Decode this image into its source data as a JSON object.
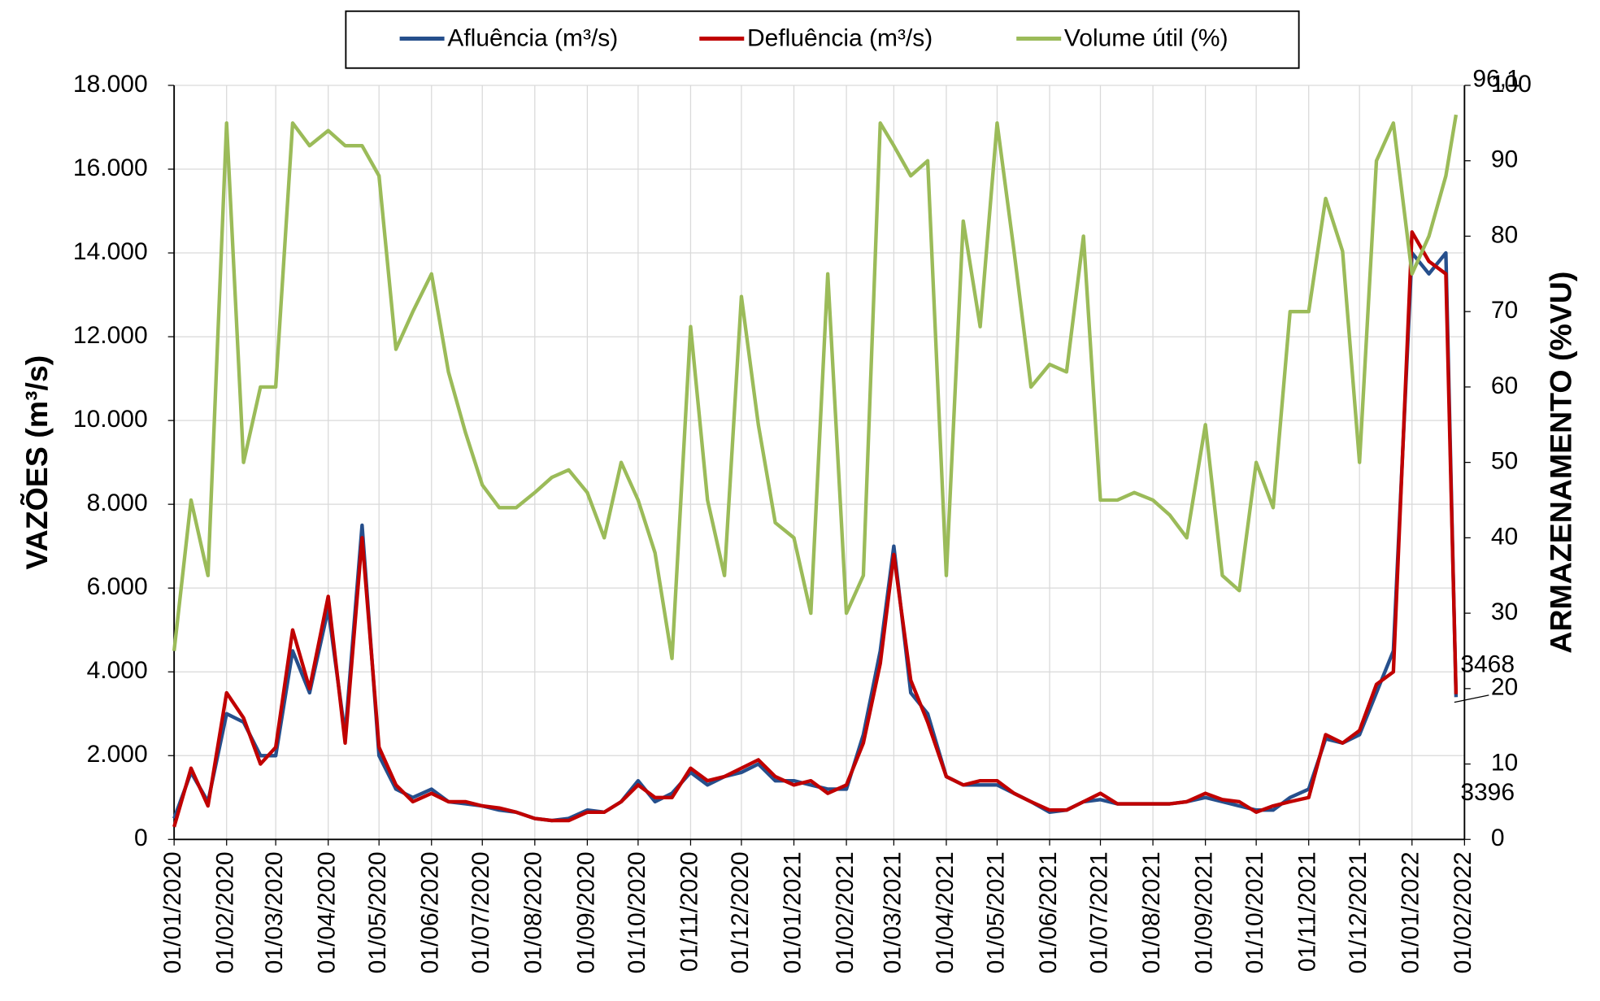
{
  "chart_data": {
    "type": "line",
    "y_label": "VAZÕES (m³/s)",
    "y2_label": "ARMAZENAMENTO (%VU)",
    "grid": true,
    "legend": "top",
    "x": [
      "01/01/2020",
      "11/01/2020",
      "21/01/2020",
      "01/02/2020",
      "11/02/2020",
      "21/02/2020",
      "01/03/2020",
      "11/03/2020",
      "21/03/2020",
      "01/04/2020",
      "11/04/2020",
      "21/04/2020",
      "01/05/2020",
      "11/05/2020",
      "21/05/2020",
      "01/06/2020",
      "11/06/2020",
      "21/06/2020",
      "01/07/2020",
      "11/07/2020",
      "21/07/2020",
      "01/08/2020",
      "11/08/2020",
      "21/08/2020",
      "01/09/2020",
      "11/09/2020",
      "21/09/2020",
      "01/10/2020",
      "11/10/2020",
      "21/10/2020",
      "01/11/2020",
      "11/11/2020",
      "21/11/2020",
      "01/12/2020",
      "11/12/2020",
      "21/12/2020",
      "01/01/2021",
      "11/01/2021",
      "21/01/2021",
      "01/02/2021",
      "11/02/2021",
      "21/02/2021",
      "01/03/2021",
      "11/03/2021",
      "21/03/2021",
      "01/04/2021",
      "11/04/2021",
      "21/04/2021",
      "01/05/2021",
      "11/05/2021",
      "21/05/2021",
      "01/06/2021",
      "11/06/2021",
      "21/06/2021",
      "01/07/2021",
      "11/07/2021",
      "21/07/2021",
      "01/08/2021",
      "11/08/2021",
      "21/08/2021",
      "01/09/2021",
      "11/09/2021",
      "21/09/2021",
      "01/10/2021",
      "11/10/2021",
      "21/10/2021",
      "01/11/2021",
      "11/11/2021",
      "21/11/2021",
      "01/12/2021",
      "11/12/2021",
      "21/12/2021",
      "01/01/2022",
      "11/01/2022",
      "21/01/2022",
      "27/01/2022"
    ],
    "xlim": [
      "01/01/2020",
      "01/02/2022"
    ],
    "xticks": [
      "01/01/2020",
      "01/02/2020",
      "01/03/2020",
      "01/04/2020",
      "01/05/2020",
      "01/06/2020",
      "01/07/2020",
      "01/08/2020",
      "01/09/2020",
      "01/10/2020",
      "01/11/2020",
      "01/12/2020",
      "01/01/2021",
      "01/02/2021",
      "01/03/2021",
      "01/04/2021",
      "01/05/2021",
      "01/06/2021",
      "01/07/2021",
      "01/08/2021",
      "01/09/2021",
      "01/10/2021",
      "01/11/2021",
      "01/12/2021",
      "01/01/2022",
      "01/02/2022"
    ],
    "ylim": [
      0,
      18000
    ],
    "yticks": [
      0,
      {
        "value": 2000,
        "label": "2.000"
      },
      {
        "value": 4000,
        "label": "4.000"
      },
      {
        "value": 6000,
        "label": "6.000"
      },
      {
        "value": 8000,
        "label": "8.000"
      },
      {
        "value": 10000,
        "label": "10.000"
      },
      {
        "value": 12000,
        "label": "12.000"
      },
      {
        "value": 14000,
        "label": "14.000"
      },
      {
        "value": 16000,
        "label": "16.000"
      },
      {
        "value": 18000,
        "label": "18.000"
      }
    ],
    "y2lim": [
      0,
      100
    ],
    "y2ticks": [
      0,
      10,
      20,
      30,
      40,
      50,
      60,
      70,
      80,
      90,
      100
    ],
    "series": [
      {
        "name": "Afluência (m³/s)",
        "color": "#264f8c",
        "label_color": "#44546a",
        "last_label": "3396",
        "values": [
          500,
          1600,
          900,
          3000,
          2800,
          2000,
          2000,
          4500,
          3500,
          5500,
          2500,
          7500,
          2000,
          1200,
          1000,
          1200,
          900,
          850,
          800,
          700,
          650,
          500,
          450,
          500,
          700,
          650,
          900,
          1400,
          900,
          1100,
          1600,
          1300,
          1500,
          1600,
          1800,
          1400,
          1400,
          1300,
          1200,
          1200,
          2500,
          4500,
          7000,
          3500,
          3000,
          1500,
          1300,
          1300,
          1300,
          1100,
          900,
          650,
          700,
          900,
          950,
          850,
          850,
          850,
          850,
          900,
          1000,
          900,
          800,
          700,
          700,
          1000,
          1200,
          2400,
          2300,
          2500,
          3500,
          4500,
          14000,
          13500,
          14000,
          3396
        ]
      },
      {
        "name": "Defluência (m³/s)",
        "color": "#c00000",
        "label_color": "#c00000",
        "last_label": "3468",
        "values": [
          300,
          1700,
          800,
          3500,
          2900,
          1800,
          2200,
          5000,
          3600,
          5800,
          2300,
          7200,
          2200,
          1300,
          900,
          1100,
          900,
          900,
          800,
          750,
          650,
          500,
          450,
          450,
          650,
          650,
          900,
          1300,
          1000,
          1000,
          1700,
          1400,
          1500,
          1700,
          1900,
          1500,
          1300,
          1400,
          1100,
          1300,
          2300,
          4200,
          6800,
          3800,
          2800,
          1500,
          1300,
          1400,
          1400,
          1100,
          900,
          700,
          700,
          900,
          1100,
          850,
          850,
          850,
          850,
          900,
          1100,
          950,
          900,
          650,
          800,
          900,
          1000,
          2500,
          2300,
          2600,
          3700,
          4000,
          14500,
          13800,
          13500,
          3468
        ]
      },
      {
        "name": "Volume útil (%)",
        "color": "#9bbb59",
        "label_color": "#9bbb59",
        "last_label": "96,1",
        "axis": "y2",
        "values": [
          25,
          45,
          35,
          95,
          50,
          60,
          60,
          95,
          92,
          94,
          92,
          92,
          88,
          65,
          70,
          75,
          62,
          54,
          47,
          44,
          44,
          46,
          48,
          49,
          46,
          40,
          50,
          45,
          38,
          24,
          68,
          45,
          35,
          72,
          55,
          42,
          40,
          30,
          75,
          30,
          35,
          95,
          92,
          88,
          90,
          35,
          82,
          68,
          95,
          78,
          60,
          63,
          62,
          80,
          45,
          45,
          46,
          45,
          43,
          40,
          55,
          35,
          33,
          50,
          44,
          70,
          70,
          85,
          78,
          50,
          90,
          95,
          75,
          80,
          88,
          96.1
        ]
      }
    ]
  }
}
